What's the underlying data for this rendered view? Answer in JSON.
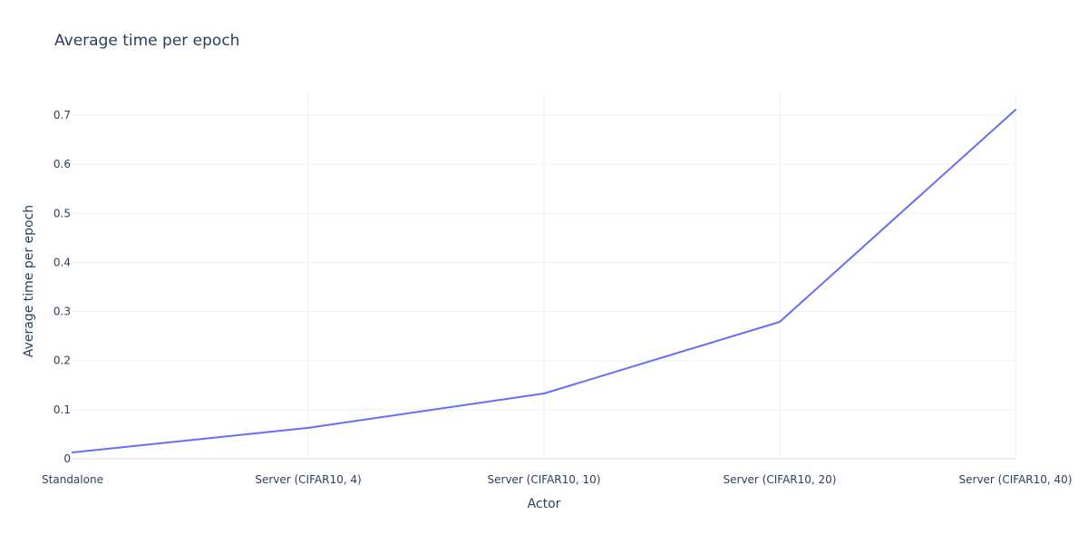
{
  "chart_data": {
    "type": "line",
    "title": "Average time per epoch",
    "xlabel": "Actor",
    "ylabel": "Average time per epoch",
    "categories": [
      "Standalone",
      "Server (CIFAR10, 4)",
      "Server (CIFAR10, 10)",
      "Server (CIFAR10, 20)",
      "Server (CIFAR10, 40)"
    ],
    "series": [
      {
        "values": [
          0.013,
          0.063,
          0.133,
          0.279,
          0.711
        ],
        "color": "#636efa"
      }
    ],
    "ylim": [
      0,
      0.75
    ],
    "yticks": [
      0,
      0.1,
      0.2,
      0.3,
      0.4,
      0.5,
      0.6,
      0.7
    ],
    "ytick_labels": [
      "0",
      "0.1",
      "0.2",
      "0.3",
      "0.4",
      "0.5",
      "0.6",
      "0.7"
    ],
    "grid": true,
    "legend": false
  }
}
